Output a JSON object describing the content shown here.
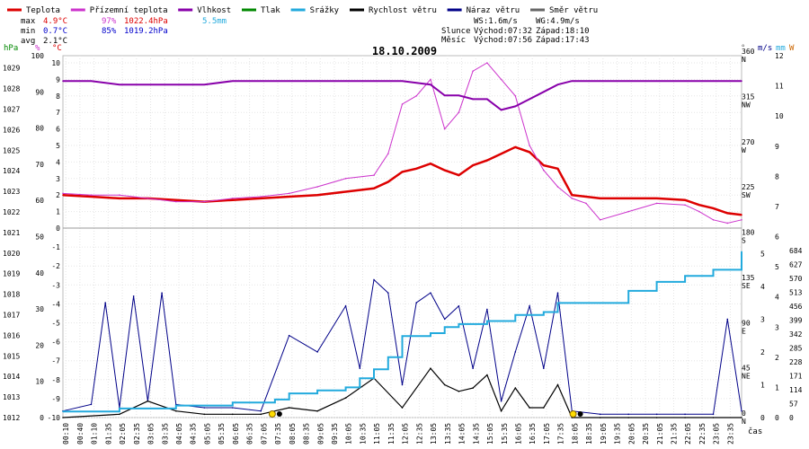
{
  "title": "18.10.2009",
  "legend": [
    {
      "label": "Teplota",
      "color": "#dd0000"
    },
    {
      "label": "Přízemní teplota",
      "color": "#cc33cc"
    },
    {
      "label": "Vlhkost",
      "color": "#8800aa"
    },
    {
      "label": "Tlak",
      "color": "#008800"
    },
    {
      "label": "Srážky",
      "color": "#22aadd"
    },
    {
      "label": "Rychlost větru",
      "color": "#000000"
    },
    {
      "label": "Náraz větru",
      "color": "#000088"
    },
    {
      "label": "Směr větru",
      "color": "#666666"
    }
  ],
  "stats": {
    "max_label": "max",
    "max_temp": "4.9°C",
    "max_hum": "97%",
    "max_press": "1022.4hPa",
    "rain_total": "5.5mm",
    "min_label": "min",
    "min_temp": "0.7°C",
    "min_hum": "85%",
    "min_press": "1019.2hPa",
    "avg_label": "avg",
    "avg_temp": "2.1°C"
  },
  "wind_info": {
    "ws": "WS:1.6m/s",
    "wg": "WG:4.9m/s"
  },
  "sun": {
    "label": "Slunce",
    "rise": "Východ:07:32",
    "set": "Západ:18:10"
  },
  "moon": {
    "label": "Měsíc",
    "rise": "Východ:07:56",
    "set": "Západ:17:43"
  },
  "axis_units": {
    "hpa": "hPa",
    "pct": "%",
    "temp": "°C",
    "dir": "°",
    "ms": "m/s",
    "mm": "mm",
    "w": "W",
    "time": "čas"
  },
  "axis_colors": {
    "hpa": "#008800",
    "pct": "#cc33cc",
    "temp": "#dd0000",
    "dir": "#666666",
    "ms": "#000088",
    "mm": "#22aadd",
    "w": "#cc6600"
  },
  "chart_data": {
    "type": "line",
    "x_labels": [
      "00:10",
      "00:40",
      "01:10",
      "01:35",
      "02:05",
      "02:35",
      "03:05",
      "03:35",
      "04:05",
      "04:35",
      "05:05",
      "05:35",
      "06:05",
      "06:35",
      "07:05",
      "07:35",
      "08:05",
      "08:35",
      "09:05",
      "09:35",
      "10:05",
      "10:35",
      "11:05",
      "11:35",
      "12:05",
      "12:35",
      "13:05",
      "13:35",
      "14:05",
      "14:35",
      "15:05",
      "15:35",
      "16:05",
      "16:35",
      "17:05",
      "17:35",
      "18:05",
      "18:35",
      "19:05",
      "19:35",
      "20:05",
      "20:35",
      "21:05",
      "21:35",
      "22:05",
      "22:35",
      "23:05",
      "23:35"
    ],
    "x_range_hours": [
      0,
      24
    ],
    "axes": {
      "pressure_hpa": {
        "ticks": [
          1012,
          1013,
          1014,
          1015,
          1016,
          1017,
          1018,
          1019,
          1020,
          1021,
          1022,
          1023,
          1024,
          1025,
          1026,
          1027,
          1028,
          1029
        ],
        "range": [
          1012,
          1029.6
        ]
      },
      "humidity_pct": {
        "ticks": [
          0,
          10,
          20,
          30,
          40,
          50,
          60,
          70,
          80,
          90,
          100
        ],
        "range": [
          0,
          100
        ]
      },
      "temperature_c": {
        "ticks": [
          -10,
          -9,
          -8,
          -7,
          -6,
          -5,
          -4,
          -3,
          -2,
          -1,
          0,
          1,
          2,
          3,
          4,
          5,
          6,
          7,
          8,
          9,
          10
        ],
        "range": [
          -10,
          10
        ]
      },
      "direction_deg": {
        "ticks": [
          0,
          45,
          90,
          135,
          180,
          225,
          270,
          315,
          360
        ],
        "labels": [
          "N",
          "NE",
          "E",
          "SE",
          "S",
          "SW",
          "W",
          "NW",
          "N"
        ],
        "range": [
          0,
          360
        ]
      },
      "wind_ms": {
        "ticks": [
          0,
          1,
          2,
          3,
          4,
          5,
          6,
          7,
          8,
          9,
          10,
          11,
          12
        ],
        "range": [
          0,
          12
        ]
      },
      "rain_mm": {
        "ticks": [
          0,
          1,
          2,
          3,
          4,
          5,
          6,
          7,
          8,
          9,
          10,
          11,
          12
        ],
        "range": [
          0,
          12
        ]
      },
      "radiation_w": {
        "ticks": [
          0,
          57,
          114,
          171,
          228,
          285,
          342,
          399,
          456,
          513,
          570,
          627,
          684
        ],
        "range": [
          0,
          684
        ]
      }
    },
    "series": [
      {
        "name": "Teplota",
        "unit": "°C",
        "color": "#dd0000",
        "x": [
          0,
          1,
          2,
          3,
          4,
          5,
          6,
          7,
          8,
          9,
          10,
          11,
          11.5,
          12,
          12.5,
          13,
          13.5,
          14,
          14.5,
          15,
          15.5,
          16,
          16.5,
          17,
          17.5,
          18,
          18.5,
          19,
          20,
          21,
          22,
          22.5,
          23,
          23.5,
          24
        ],
        "y": [
          2.0,
          1.9,
          1.8,
          1.8,
          1.7,
          1.6,
          1.7,
          1.8,
          1.9,
          2.0,
          2.2,
          2.4,
          2.8,
          3.4,
          3.6,
          3.9,
          3.5,
          3.2,
          3.8,
          4.1,
          4.5,
          4.9,
          4.6,
          3.8,
          3.6,
          2.0,
          1.9,
          1.8,
          1.8,
          1.8,
          1.7,
          1.4,
          1.2,
          0.9,
          0.8
        ]
      },
      {
        "name": "Přízemní teplota",
        "unit": "°C",
        "color": "#cc33cc",
        "x": [
          0,
          1,
          2,
          3,
          4,
          5,
          6,
          7,
          8,
          9,
          10,
          11,
          11.5,
          12,
          12.5,
          13,
          13.5,
          14,
          14.5,
          15,
          15.5,
          16,
          16.5,
          17,
          17.5,
          18,
          18.5,
          19,
          20,
          21,
          22,
          22.5,
          23,
          23.5,
          24
        ],
        "y": [
          2.1,
          2.0,
          2.0,
          1.8,
          1.6,
          1.6,
          1.8,
          1.9,
          2.1,
          2.5,
          3.0,
          3.2,
          4.5,
          7.5,
          8.0,
          9.0,
          6.0,
          7.0,
          9.5,
          10.0,
          9.0,
          8.0,
          5.0,
          3.5,
          2.5,
          1.8,
          1.5,
          0.5,
          1.0,
          1.5,
          1.4,
          1.0,
          0.5,
          0.3,
          0.5
        ]
      },
      {
        "name": "Vlhkost",
        "unit": "%",
        "color": "#8800aa",
        "x": [
          0,
          1,
          2,
          3,
          4,
          5,
          6,
          7,
          8,
          9,
          10,
          11,
          12,
          13,
          13.5,
          14,
          14.5,
          15,
          15.5,
          16,
          16.5,
          17,
          17.5,
          18,
          19,
          20,
          21,
          22,
          23,
          24
        ],
        "y": [
          93,
          93,
          92,
          92,
          92,
          92,
          93,
          93,
          93,
          93,
          93,
          93,
          93,
          92,
          89,
          89,
          88,
          88,
          85,
          86,
          88,
          90,
          92,
          93,
          93,
          93,
          93,
          93,
          93,
          93
        ]
      },
      {
        "name": "Náraz větru",
        "unit": "m/s",
        "color": "#000088",
        "x": [
          0,
          1,
          1.5,
          2,
          2.5,
          3,
          3.5,
          4,
          5,
          6,
          7,
          8,
          9,
          10,
          10.5,
          11,
          11.5,
          12,
          12.5,
          13,
          13.5,
          14,
          14.5,
          15,
          15.5,
          16,
          16.5,
          17,
          17.5,
          18,
          19,
          20,
          21,
          22,
          23,
          23.5,
          24
        ],
        "y": [
          0.2,
          0.4,
          3.5,
          0.3,
          3.7,
          0.5,
          3.8,
          0.4,
          0.3,
          0.3,
          0.2,
          2.5,
          2.0,
          3.4,
          1.5,
          4.2,
          3.8,
          1.0,
          3.5,
          3.8,
          3.0,
          3.4,
          1.5,
          3.3,
          0.5,
          2.0,
          3.4,
          1.5,
          3.8,
          0.2,
          0.1,
          0.1,
          0.1,
          0.1,
          0.1,
          3.0,
          0.2
        ]
      },
      {
        "name": "Rychlost větru",
        "unit": "m/s",
        "color": "#000000",
        "x": [
          0,
          2,
          3,
          4,
          5,
          6,
          7,
          8,
          9,
          10,
          11,
          12,
          13,
          13.5,
          14,
          14.5,
          15,
          15.5,
          16,
          16.5,
          17,
          17.5,
          18,
          19,
          20,
          21,
          22,
          23,
          24
        ],
        "y": [
          0.0,
          0.1,
          0.5,
          0.2,
          0.1,
          0.1,
          0.1,
          0.3,
          0.2,
          0.6,
          1.2,
          0.3,
          1.5,
          1.0,
          0.8,
          0.9,
          1.3,
          0.2,
          0.9,
          0.3,
          0.3,
          1.0,
          0.0,
          0.0,
          0.0,
          0.0,
          0.0,
          0.0,
          0.0
        ]
      },
      {
        "name": "Srážky",
        "unit": "mm",
        "color": "#22aadd",
        "x": [
          0,
          2,
          4,
          6,
          7.5,
          8,
          9,
          10,
          10.5,
          11,
          11.5,
          12,
          13,
          13.5,
          14,
          15,
          16,
          17,
          17.5,
          18,
          19,
          20,
          21,
          22,
          23,
          24
        ],
        "y": [
          0.2,
          0.3,
          0.4,
          0.5,
          0.6,
          0.8,
          0.9,
          1.0,
          1.3,
          1.6,
          2.0,
          2.7,
          2.8,
          3.0,
          3.1,
          3.2,
          3.4,
          3.5,
          3.8,
          3.8,
          3.8,
          4.2,
          4.5,
          4.7,
          4.9,
          5.5
        ]
      }
    ]
  }
}
